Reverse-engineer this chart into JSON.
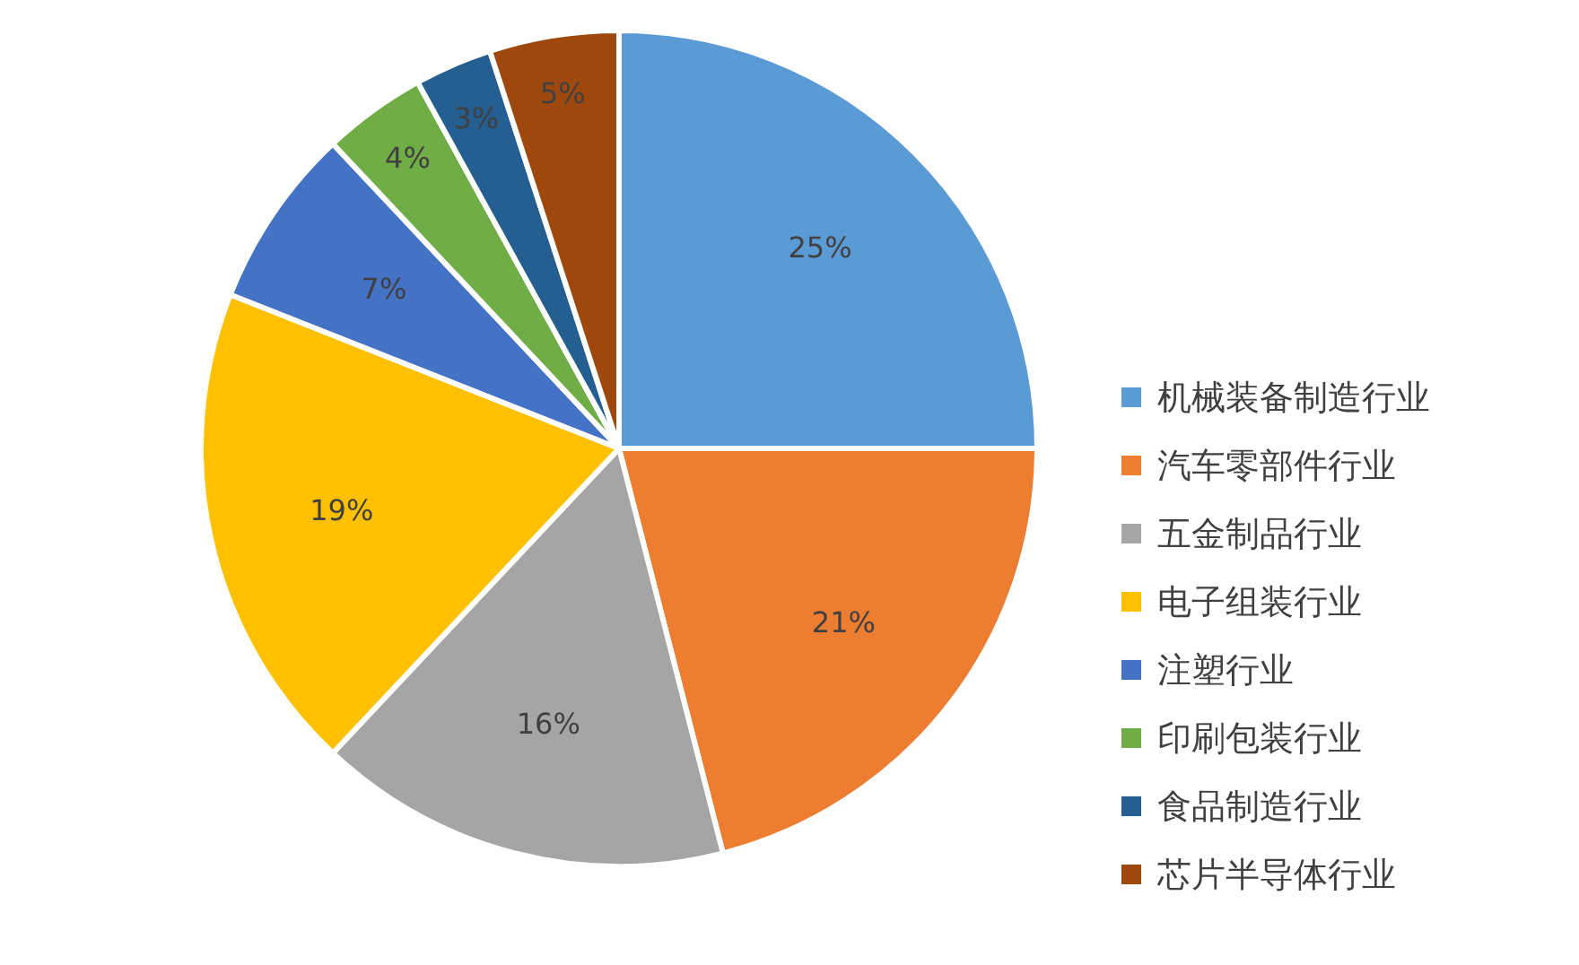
{
  "chart_data": {
    "type": "pie",
    "categories": [
      "机械装备制造行业",
      "汽车零部件行业",
      "五金制品行业",
      "电子组装行业",
      "注塑行业",
      "印刷包装行业",
      "食品制造行业",
      "芯片半导体行业"
    ],
    "values": [
      25,
      21,
      16,
      19,
      7,
      4,
      3,
      5
    ],
    "value_labels": [
      "25%",
      "21%",
      "16%",
      "19%",
      "7%",
      "4%",
      "3%",
      "5%"
    ],
    "colors": [
      "#5b9bd5",
      "#ed7d31",
      "#a5a5a5",
      "#ffc000",
      "#4472c4",
      "#70ad47",
      "#255e91",
      "#9e480e"
    ],
    "legend": "right"
  }
}
